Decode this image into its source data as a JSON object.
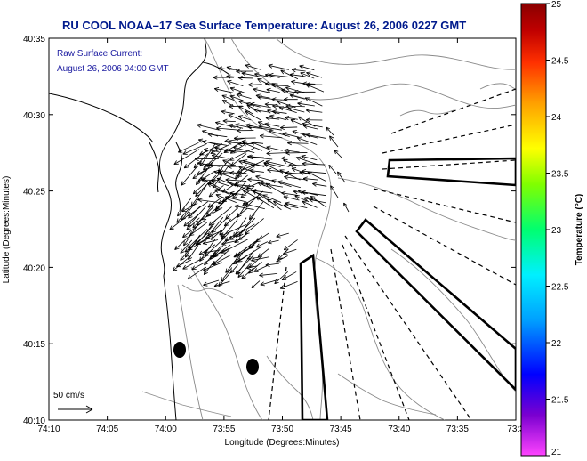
{
  "title": "RU COOL  NOAA–17  Sea Surface Temperature:  August 26, 2006 0227 GMT",
  "annotation": {
    "line1": "Raw Surface Current:",
    "line2": "August 26, 2006 04:00 GMT"
  },
  "scale_label": "50 cm/s",
  "x_axis": {
    "label": "Longitude (Degrees:Minutes)",
    "ticks": [
      "74:10",
      "74:05",
      "74:00",
      "73:55",
      "73:50",
      "73:45",
      "73:40",
      "73:35",
      "73:3"
    ]
  },
  "y_axis": {
    "label": "Latitude (Degrees:Minutes)",
    "ticks": [
      "40:35",
      "40:30",
      "40:25",
      "40:20",
      "40:15",
      "40:10"
    ]
  },
  "colorbar": {
    "label": "Temperature (°C)",
    "ticks": [
      "25",
      "24.5",
      "24",
      "23.5",
      "23",
      "22.5",
      "22",
      "21.5",
      "21"
    ],
    "colors": [
      "#ff44ff",
      "#7a00d0",
      "#0000ff",
      "#00a0ff",
      "#00f0ff",
      "#00ff70",
      "#80ff00",
      "#ffff00",
      "#ffa000",
      "#ff3000",
      "#c00000",
      "#8a0000"
    ]
  },
  "colors": {
    "title": "#001a8c",
    "annotation": "#1a1aa0",
    "bathymetry": "#808080",
    "arrows": "#000000"
  }
}
